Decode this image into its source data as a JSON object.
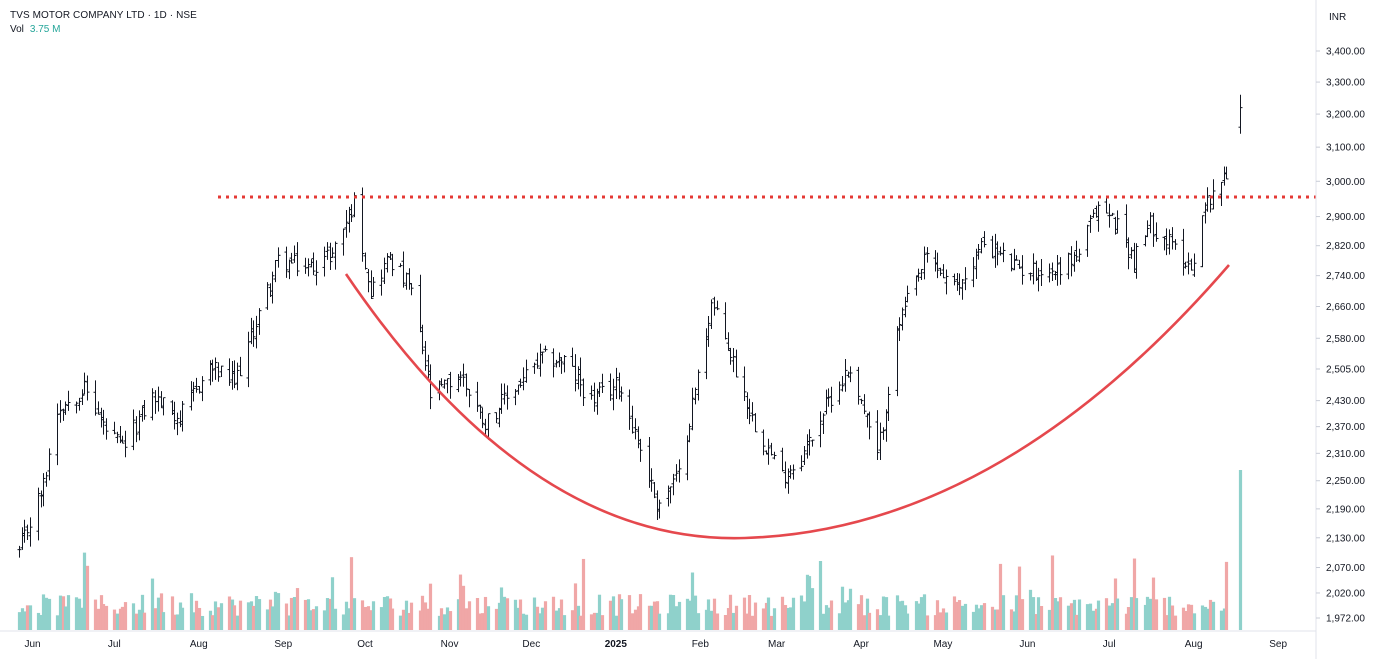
{
  "header": {
    "symbol_line": "TVS MOTOR COMPANY LTD · 1D · NSE",
    "volume_label": "Vol",
    "volume_value": "3.75 M",
    "currency": "INR"
  },
  "colors": {
    "candle": "#131722",
    "volume_up": "#8fd1cb",
    "volume_down": "#f0a7a7",
    "resistance": "#e53935",
    "cup_curve": "#e5484d",
    "axis_border": "#e0e3eb"
  },
  "chart_data": {
    "type": "ohlc",
    "y_axis": {
      "ticks": [
        "3,400.00",
        "3,300.00",
        "3,200.00",
        "3,100.00",
        "3,000.00",
        "2,900.00",
        "2,820.00",
        "2,740.00",
        "2,660.00",
        "2,580.00",
        "2,505.00",
        "2,430.00",
        "2,370.00",
        "2,310.00",
        "2,250.00",
        "2,190.00",
        "2,130.00",
        "2,070.00",
        "2,020.00",
        "1,972.00"
      ],
      "scale": "log"
    },
    "x_axis": {
      "ticks": [
        "Jun",
        "Jul",
        "Aug",
        "Sep",
        "Oct",
        "Nov",
        "Dec",
        "2025",
        "Feb",
        "Mar",
        "Apr",
        "May",
        "Jun",
        "Jul",
        "Aug",
        "Sep"
      ],
      "bold_ticks": [
        "2025"
      ]
    },
    "resistance_level": 2955,
    "price_waypoints": [
      [
        "2024-05-27",
        2100
      ],
      [
        "2024-06-05",
        2240
      ],
      [
        "2024-06-10",
        2410
      ],
      [
        "2024-06-20",
        2460
      ],
      [
        "2024-06-28",
        2360
      ],
      [
        "2024-07-04",
        2320
      ],
      [
        "2024-07-15",
        2440
      ],
      [
        "2024-07-25",
        2390
      ],
      [
        "2024-08-05",
        2510
      ],
      [
        "2024-08-14",
        2470
      ],
      [
        "2024-08-22",
        2620
      ],
      [
        "2024-08-30",
        2780
      ],
      [
        "2024-09-10",
        2760
      ],
      [
        "2024-09-19",
        2800
      ],
      [
        "2024-09-27",
        2940
      ],
      [
        "2024-10-03",
        2700
      ],
      [
        "2024-10-10",
        2790
      ],
      [
        "2024-10-18",
        2700
      ],
      [
        "2024-10-25",
        2440
      ],
      [
        "2024-11-05",
        2490
      ],
      [
        "2024-11-14",
        2380
      ],
      [
        "2024-11-25",
        2460
      ],
      [
        "2024-12-05",
        2530
      ],
      [
        "2024-12-13",
        2525
      ],
      [
        "2024-12-23",
        2430
      ],
      [
        "2025-01-02",
        2470
      ],
      [
        "2025-01-10",
        2320
      ],
      [
        "2025-01-16",
        2200
      ],
      [
        "2025-01-24",
        2260
      ],
      [
        "2025-02-01",
        2520
      ],
      [
        "2025-02-05",
        2670
      ],
      [
        "2025-02-11",
        2560
      ],
      [
        "2025-02-20",
        2390
      ],
      [
        "2025-03-03",
        2260
      ],
      [
        "2025-03-10",
        2300
      ],
      [
        "2025-03-20",
        2430
      ],
      [
        "2025-03-28",
        2510
      ],
      [
        "2025-04-07",
        2300
      ],
      [
        "2025-04-15",
        2620
      ],
      [
        "2025-04-25",
        2790
      ],
      [
        "2025-05-06",
        2700
      ],
      [
        "2025-05-16",
        2830
      ],
      [
        "2025-05-28",
        2760
      ],
      [
        "2025-06-10",
        2750
      ],
      [
        "2025-06-20",
        2800
      ],
      [
        "2025-06-27",
        2930
      ],
      [
        "2025-07-04",
        2880
      ],
      [
        "2025-07-10",
        2780
      ],
      [
        "2025-07-16",
        2880
      ],
      [
        "2025-07-24",
        2820
      ],
      [
        "2025-07-31",
        2760
      ],
      [
        "2025-08-04",
        2900
      ],
      [
        "2025-08-08",
        2980
      ],
      [
        "2025-08-13",
        3010
      ]
    ],
    "gap_bar": {
      "date": "2025-08-18",
      "open": 3160,
      "high": 3260,
      "low": 3140,
      "close": 3220
    },
    "volume_last": "3.75 M"
  }
}
